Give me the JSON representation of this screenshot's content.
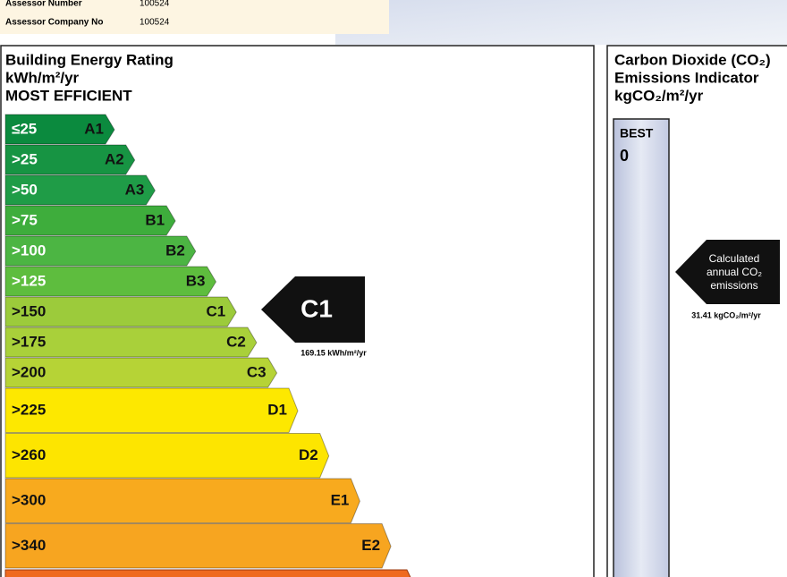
{
  "header": {
    "assessor_number_label": "Assessor Number",
    "assessor_number": "100524",
    "company_label": "Assessor Company No",
    "company_number": "100524"
  },
  "ber_panel": {
    "title": "Building Energy Rating",
    "unit": "kWh/m²/yr",
    "subtitle": "MOST EFFICIENT",
    "bands": [
      {
        "range": "≤25",
        "grade": "A1",
        "color": "#0b8a3e"
      },
      {
        "range": ">25",
        "grade": "A2",
        "color": "#179443"
      },
      {
        "range": ">50",
        "grade": "A3",
        "color": "#1f9c47"
      },
      {
        "range": ">75",
        "grade": "B1",
        "color": "#3ead3c"
      },
      {
        "range": ">100",
        "grade": "B2",
        "color": "#4cb543"
      },
      {
        "range": ">125",
        "grade": "B3",
        "color": "#5ebd3e"
      },
      {
        "range": ">150",
        "grade": "C1",
        "color": "#9ccb3b"
      },
      {
        "range": ">175",
        "grade": "C2",
        "color": "#a9d03a"
      },
      {
        "range": ">200",
        "grade": "C3",
        "color": "#b6d336"
      },
      {
        "range": ">225",
        "grade": "D1",
        "color": "#fde800"
      },
      {
        "range": ">260",
        "grade": "D2",
        "color": "#fde500"
      },
      {
        "range": ">300",
        "grade": "E1",
        "color": "#f8aa1e"
      },
      {
        "range": ">340",
        "grade": "E2",
        "color": "#f7a520"
      }
    ],
    "rating": {
      "grade": "C1",
      "value": "169.15 kWh/m²/yr"
    }
  },
  "co2_panel": {
    "title": [
      "Carbon Dioxide (CO₂)",
      "Emissions Indicator"
    ],
    "unit": "kgCO₂/m²/yr",
    "best_label": "BEST",
    "best_value": "0",
    "pointer_label": [
      "Calculated",
      "annual CO₂",
      "emissions"
    ],
    "value": "31.41 kgCO₂/m²/yr"
  }
}
